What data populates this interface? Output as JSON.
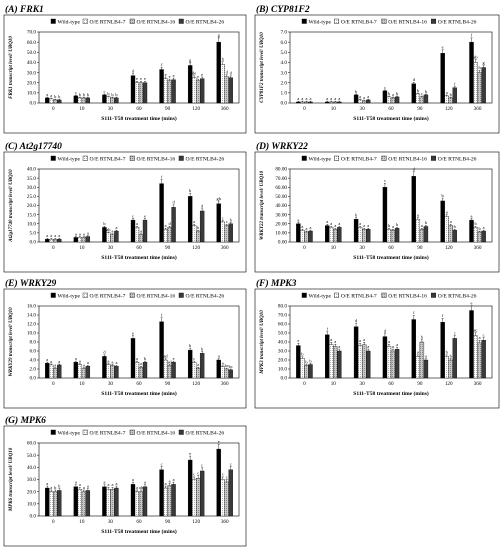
{
  "figure": {
    "legend": [
      "Wild-type",
      "O/E RTNLB4-7",
      "O/E RTNLB4-16",
      "O/E RTNLB4-26"
    ],
    "colors": [
      "#000000",
      "#ffffff",
      "#b5b5b5",
      "#3a3a3a"
    ],
    "xlabel": "S111-T58 treatment time (mins)"
  },
  "chart_data": [
    {
      "type": "bar",
      "panel": "(A)",
      "title": "FRK1",
      "ylabel": "FRK1 transcript level/ UBQ10",
      "xlabel": "S111-T58 treatment time (mins)",
      "categories": [
        "0",
        "10",
        "30",
        "60",
        "90",
        "120",
        "360"
      ],
      "ylim": [
        0,
        70
      ],
      "ytick_step": 10,
      "tick_decimals": 1,
      "series": [
        {
          "name": "Wild-type",
          "values": [
            5,
            7,
            8,
            27,
            33,
            37,
            60
          ]
        },
        {
          "name": "O/E RTNLB4-7",
          "values": [
            4,
            5,
            6,
            20,
            24,
            25,
            38
          ]
        },
        {
          "name": "O/E RTNLB4-16",
          "values": [
            3,
            5,
            5,
            20,
            22,
            22,
            26
          ]
        },
        {
          "name": "O/E RTNLB4-26",
          "values": [
            3,
            5,
            5,
            20,
            23,
            24,
            25
          ]
        }
      ],
      "letters": [
        [
          "a",
          "a",
          "b",
          "b"
        ],
        [
          "c",
          "b",
          "b",
          "b"
        ],
        [
          "c",
          "b",
          "b",
          "b"
        ],
        [
          "d",
          "e",
          "e",
          "e"
        ],
        [
          "f",
          "e",
          "e",
          "e"
        ],
        [
          "g",
          "de",
          "e",
          "e"
        ],
        [
          "g",
          "h",
          "d",
          "d"
        ]
      ]
    },
    {
      "type": "bar",
      "panel": "(B)",
      "title": "CYP81F2",
      "ylabel": "CYP81F2 transcript level/ UBQ10",
      "xlabel": "S111-T58 treatment time (mins)",
      "categories": [
        "0",
        "10",
        "30",
        "60",
        "90",
        "120",
        "360"
      ],
      "ylim": [
        0,
        7
      ],
      "ytick_step": 1,
      "tick_decimals": 1,
      "series": [
        {
          "name": "Wild-type",
          "values": [
            0.1,
            0.1,
            0.8,
            1.2,
            1.9,
            4.9,
            6.0
          ]
        },
        {
          "name": "O/E RTNLB4-7",
          "values": [
            0.1,
            0.1,
            0.3,
            0.6,
            0.9,
            0.7,
            4.0
          ]
        },
        {
          "name": "O/E RTNLB4-16",
          "values": [
            0.1,
            0.1,
            0.2,
            0.5,
            0.6,
            0.5,
            3.0
          ]
        },
        {
          "name": "O/E RTNLB4-26",
          "values": [
            0.1,
            0.1,
            0.3,
            0.6,
            0.8,
            1.5,
            3.5
          ]
        }
      ],
      "letters": [
        [
          "a",
          "a",
          "a",
          "a"
        ],
        [
          "a",
          "a",
          "a",
          "a"
        ],
        [
          "b",
          "a",
          "a",
          "a"
        ],
        [
          "c",
          "b",
          "a",
          "b"
        ],
        [
          "d",
          "b",
          "c",
          "b"
        ],
        [
          "e",
          "a",
          "b",
          "f"
        ],
        [
          "f",
          "ab",
          "h",
          "g"
        ]
      ]
    },
    {
      "type": "bar",
      "panel": "(C)",
      "title": "At2g17740",
      "ylabel": "At2g17740 transcript level/ UBQ10",
      "xlabel": "S111-T58 treatment time (mins)",
      "categories": [
        "0",
        "10",
        "30",
        "60",
        "90",
        "120",
        "360"
      ],
      "ylim": [
        0,
        40
      ],
      "ytick_step": 5,
      "tick_decimals": 1,
      "series": [
        {
          "name": "Wild-type",
          "values": [
            1.5,
            2.5,
            8,
            12,
            32,
            25,
            21
          ]
        },
        {
          "name": "O/E RTNLB4-7",
          "values": [
            1.5,
            2.5,
            5,
            8,
            7,
            9,
            11
          ]
        },
        {
          "name": "O/E RTNLB4-16",
          "values": [
            1.5,
            2.5,
            4,
            4,
            8,
            6,
            9
          ]
        },
        {
          "name": "O/E RTNLB4-26",
          "values": [
            1.5,
            3,
            6,
            12,
            19,
            17,
            10
          ]
        }
      ],
      "letters": [
        [
          "a",
          "a",
          "a",
          "a"
        ],
        [
          "a",
          "a",
          "a",
          "a"
        ],
        [
          "b",
          "ab",
          "a",
          "a"
        ],
        [
          "c",
          "a",
          "a",
          "e"
        ],
        [
          "f",
          "a",
          "d",
          "d"
        ],
        [
          "b",
          "a",
          "b",
          "d"
        ],
        [
          "gh",
          "c",
          "c",
          "b"
        ]
      ]
    },
    {
      "type": "bar",
      "panel": "(D)",
      "title": "WRKY22",
      "ylabel": "WRKY22 transcript level/ UBQ10",
      "xlabel": "S111-T58 treatment time (mins)",
      "categories": [
        "0",
        "10",
        "30",
        "60",
        "90",
        "120",
        "360"
      ],
      "ylim": [
        0,
        80
      ],
      "ytick_step": 10,
      "tick_decimals": 2,
      "series": [
        {
          "name": "Wild-type",
          "values": [
            20,
            18,
            25,
            60,
            72,
            45,
            24
          ]
        },
        {
          "name": "O/E RTNLB4-7",
          "values": [
            13,
            16,
            16,
            14,
            25,
            28,
            16
          ]
        },
        {
          "name": "O/E RTNLB4-16",
          "values": [
            11,
            14,
            14,
            13,
            14,
            18,
            11
          ]
        },
        {
          "name": "O/E RTNLB4-26",
          "values": [
            12,
            16,
            14,
            15,
            17,
            13,
            12
          ]
        }
      ],
      "letters": [
        [
          "a",
          "a",
          "a",
          "a"
        ],
        [
          "a",
          "a",
          "a",
          "a"
        ],
        [
          "b",
          "a",
          "a",
          "a"
        ],
        [
          "c",
          "b",
          "a",
          "b"
        ],
        [
          "d",
          "a",
          "a",
          "b"
        ],
        [
          "b",
          "a",
          "a",
          "b"
        ],
        [
          "a",
          "b",
          "b",
          "a"
        ]
      ]
    },
    {
      "type": "bar",
      "panel": "(E)",
      "title": "WRKY29",
      "ylabel": "WRKY29 transcript level/ UBQ10",
      "xlabel": "S111-T58 treatment time (mins)",
      "categories": [
        "0",
        "10",
        "30",
        "60",
        "90",
        "120",
        "360"
      ],
      "ylim": [
        0,
        16
      ],
      "ytick_step": 2,
      "tick_decimals": 1,
      "series": [
        {
          "name": "Wild-type",
          "values": [
            3.3,
            3.5,
            4.8,
            8.8,
            12.5,
            6.2,
            4.0
          ]
        },
        {
          "name": "O/E RTNLB4-7",
          "values": [
            2.9,
            3.0,
            3.0,
            3.5,
            4.0,
            3.5,
            2.5
          ]
        },
        {
          "name": "O/E RTNLB4-16",
          "values": [
            2.1,
            2.1,
            2.8,
            2.4,
            2.8,
            2.2,
            2.0
          ]
        },
        {
          "name": "O/E RTNLB4-26",
          "values": [
            2.9,
            2.6,
            2.6,
            3.5,
            3.5,
            5.5,
            1.8
          ]
        }
      ],
      "letters": [
        [
          "a",
          "a",
          "a",
          "a"
        ],
        [
          "a",
          "a",
          "a",
          "a"
        ],
        [
          "d",
          "a",
          "a",
          "a"
        ],
        [
          "e",
          "a",
          "a",
          "b"
        ],
        [
          "f",
          "ad",
          "ad",
          "e"
        ],
        [
          "b",
          "c",
          "a",
          "b"
        ],
        [
          "a",
          "a",
          "bc",
          "bc"
        ]
      ]
    },
    {
      "type": "bar",
      "panel": "(F)",
      "title": "MPK3",
      "ylabel": "MPK3 transcript level/ UBQ10",
      "xlabel": "S111-T58 treatment time (mins)",
      "categories": [
        "0",
        "10",
        "30",
        "60",
        "90",
        "120",
        "360"
      ],
      "ylim": [
        0,
        80
      ],
      "ytick_step": 10,
      "tick_decimals": 1,
      "series": [
        {
          "name": "Wild-type",
          "values": [
            36,
            48,
            57,
            46,
            65,
            62,
            75
          ]
        },
        {
          "name": "O/E RTNLB4-7",
          "values": [
            22,
            37,
            36,
            35,
            24,
            24,
            47
          ]
        },
        {
          "name": "O/E RTNLB4-16",
          "values": [
            14,
            35,
            37,
            30,
            40,
            20,
            39
          ]
        },
        {
          "name": "O/E RTNLB4-26",
          "values": [
            15,
            30,
            30,
            32,
            20,
            44,
            42
          ]
        }
      ],
      "letters": [
        [
          "e",
          "b",
          "b",
          "b"
        ],
        [
          "f",
          "a",
          "a",
          "a"
        ],
        [
          "d",
          "a",
          "a",
          "a"
        ],
        [
          "d",
          "a",
          "a",
          "a"
        ],
        [
          "f",
          "a",
          "b",
          "a"
        ],
        [
          "f",
          "b",
          "b",
          "c"
        ],
        [
          "e",
          "ac",
          "a",
          "c"
        ]
      ]
    },
    {
      "type": "bar",
      "panel": "(G)",
      "title": "MPK6",
      "ylabel": "MPK6 transcript level/ UBQ10",
      "xlabel": "S111-T58 treatment time (mins)",
      "categories": [
        "0",
        "10",
        "30",
        "60",
        "90",
        "120",
        "360"
      ],
      "ylim": [
        0,
        60
      ],
      "ytick_step": 10,
      "tick_decimals": 1,
      "series": [
        {
          "name": "Wild-type",
          "values": [
            23,
            24,
            24,
            26,
            38,
            46,
            55
          ]
        },
        {
          "name": "O/E RTNLB4-7",
          "values": [
            20,
            22,
            22,
            20,
            23,
            30,
            30
          ]
        },
        {
          "name": "O/E RTNLB4-16",
          "values": [
            20,
            20,
            22,
            20,
            25,
            31,
            28
          ]
        },
        {
          "name": "O/E RTNLB4-26",
          "values": [
            21,
            21,
            23,
            24,
            26,
            37,
            38
          ]
        }
      ],
      "letters": [
        [
          "a",
          "a",
          "b",
          "b"
        ],
        [
          "a",
          "a",
          "a",
          "a"
        ],
        [
          "a",
          "a",
          "a",
          "a"
        ],
        [
          "a",
          "a",
          "ab",
          "a"
        ],
        [
          "c",
          "a",
          "a",
          "a"
        ],
        [
          "e",
          "c",
          "c",
          "c"
        ],
        [
          "e",
          "c",
          "c",
          "c"
        ]
      ]
    }
  ]
}
